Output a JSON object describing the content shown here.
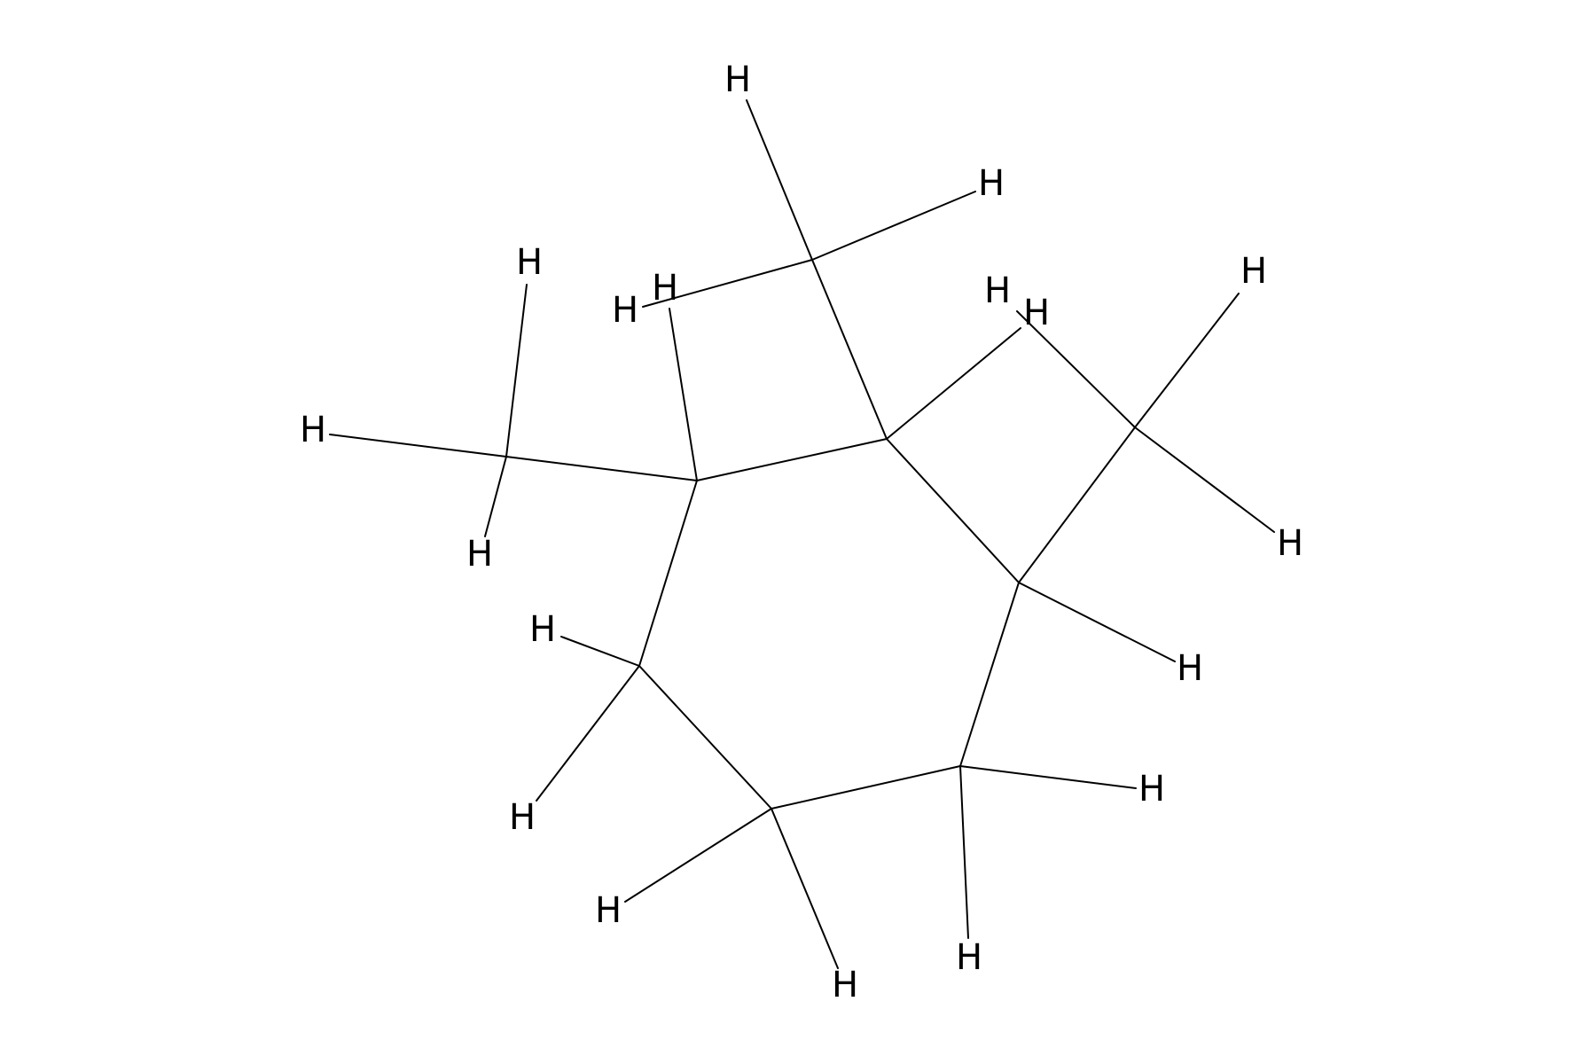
{
  "molecule": {
    "hydrogen_symbol": "H",
    "colors": {
      "background": "#ffffff",
      "ink": "#000000"
    }
  }
}
